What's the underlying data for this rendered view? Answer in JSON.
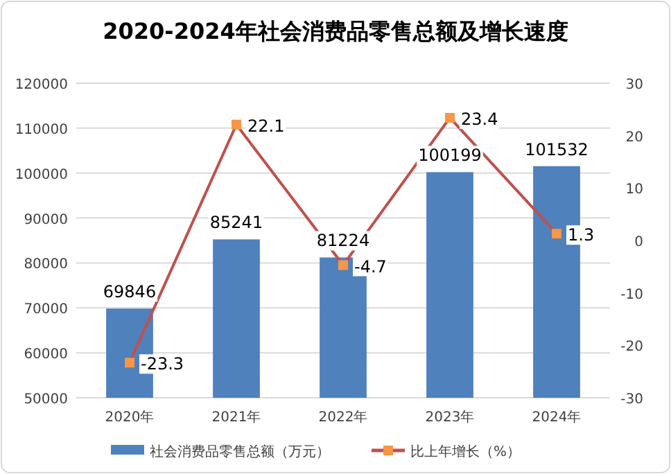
{
  "chart_data": {
    "type": "bar",
    "title": "2020-2024年社会消费品零售总额及增长速度",
    "categories": [
      "2020年",
      "2021年",
      "2022年",
      "2023年",
      "2024年"
    ],
    "series": [
      {
        "name": "社会消费品零售总额（万元）",
        "color": "#4f81bd",
        "values": [
          69846,
          85241,
          81224,
          100199,
          101532
        ]
      },
      {
        "name": "比上年增长（%）",
        "type": "line",
        "axis": "y2",
        "color": "#c0504d",
        "values": [
          -23.3,
          22.1,
          -4.7,
          23.4,
          1.3
        ]
      }
    ],
    "ylim": [
      50000,
      120000
    ],
    "yticks": [
      50000,
      60000,
      70000,
      80000,
      90000,
      100000,
      110000,
      120000
    ],
    "y2lim": [
      -30,
      30
    ],
    "y2ticks": [
      -30,
      -20,
      -10,
      0,
      10,
      20,
      30
    ],
    "grid": "y",
    "legend": "bottom",
    "data_labels": true,
    "marker": "square"
  }
}
